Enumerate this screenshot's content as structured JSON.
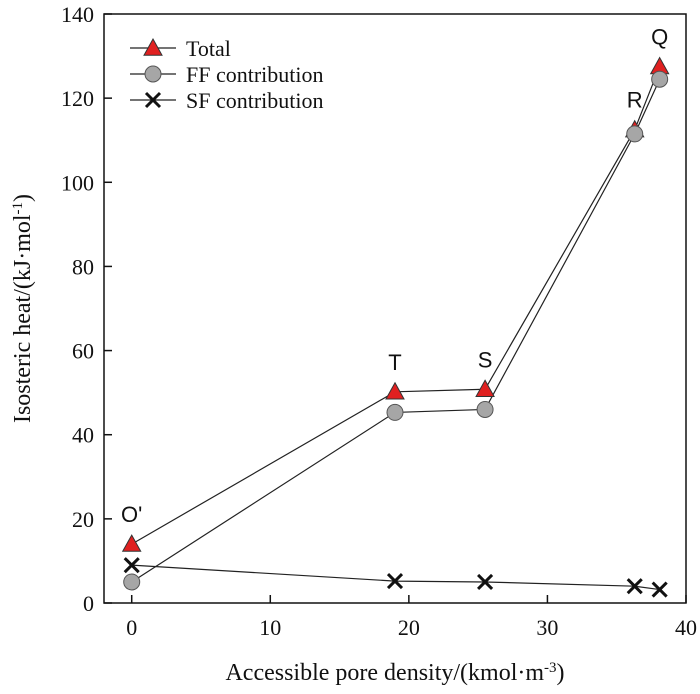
{
  "chart_data": {
    "type": "line",
    "title": "",
    "xlabel_main": "Accessible pore density/(kmol·m",
    "xlabel_sup": "-3",
    "xlabel_end": ")",
    "ylabel_main": "Isosteric heat/(kJ·mol",
    "ylabel_sup": "-1",
    "ylabel_end": ")",
    "xlim": [
      -2,
      40
    ],
    "ylim": [
      0,
      140
    ],
    "xticks": [
      0,
      10,
      20,
      30,
      40
    ],
    "yticks": [
      0,
      20,
      40,
      60,
      80,
      100,
      120,
      140
    ],
    "grid": false,
    "legend_position": "top-left",
    "series": [
      {
        "name": "Total",
        "marker": "triangle",
        "color": "#e02020",
        "x": [
          0,
          19,
          25.5,
          36.3,
          38.1
        ],
        "y": [
          14,
          50.2,
          50.8,
          112.5,
          127.5
        ]
      },
      {
        "name": "FF contribution",
        "marker": "circle",
        "color": "#a6a6a6",
        "x": [
          0,
          19,
          25.5,
          36.3,
          38.1
        ],
        "y": [
          5,
          45.3,
          46,
          111.5,
          124.5
        ]
      },
      {
        "name": "SF contribution",
        "marker": "cross",
        "color": "#111111",
        "x": [
          0,
          19,
          25.5,
          36.3,
          38.1
        ],
        "y": [
          9,
          5.2,
          5,
          4,
          3.2
        ]
      }
    ],
    "annotations": [
      {
        "text": "O'",
        "x": 0,
        "y": 14
      },
      {
        "text": "T",
        "x": 19,
        "y": 50.2
      },
      {
        "text": "S",
        "x": 25.5,
        "y": 50.8
      },
      {
        "text": "R",
        "x": 36.3,
        "y": 112.5
      },
      {
        "text": "Q",
        "x": 38.1,
        "y": 127.5
      }
    ]
  }
}
